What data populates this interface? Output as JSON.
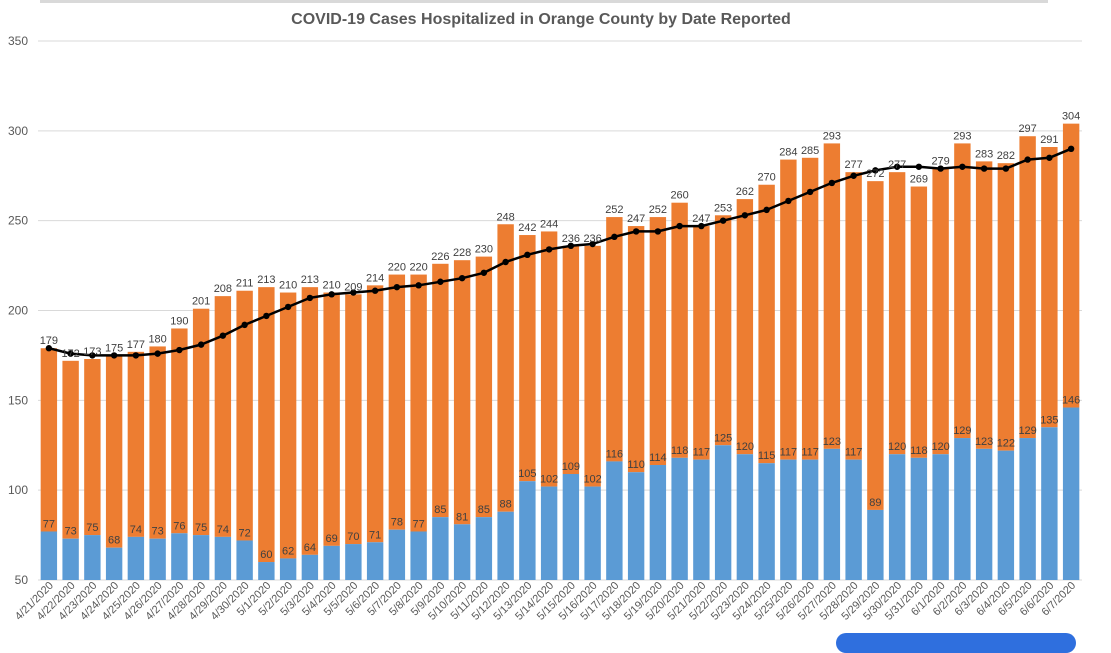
{
  "chart_data": {
    "type": "bar",
    "stacked": true,
    "title": "COVID-19 Cases Hospitalized in Orange County by Date Reported",
    "xlabel": "",
    "ylabel": "",
    "ylim": [
      50,
      350
    ],
    "yticks": [
      50,
      100,
      150,
      200,
      250,
      300,
      350
    ],
    "grid": "horizontal",
    "legend": "none",
    "categories": [
      "4/21/2020",
      "4/22/2020",
      "4/23/2020",
      "4/24/2020",
      "4/25/2020",
      "4/26/2020",
      "4/27/2020",
      "4/28/2020",
      "4/29/2020",
      "4/30/2020",
      "5/1/2020",
      "5/2/2020",
      "5/3/2020",
      "5/4/2020",
      "5/5/2020",
      "5/6/2020",
      "5/7/2020",
      "5/8/2020",
      "5/9/2020",
      "5/10/2020",
      "5/11/2020",
      "5/12/2020",
      "5/13/2020",
      "5/14/2020",
      "5/15/2020",
      "5/16/2020",
      "5/17/2020",
      "5/18/2020",
      "5/19/2020",
      "5/20/2020",
      "5/21/2020",
      "5/22/2020",
      "5/23/2020",
      "5/24/2020",
      "5/25/2020",
      "5/26/2020",
      "5/27/2020",
      "5/28/2020",
      "5/29/2020",
      "5/30/2020",
      "5/31/2020",
      "6/1/2020",
      "6/2/2020",
      "6/3/2020",
      "6/4/2020",
      "6/5/2020",
      "6/6/2020",
      "6/7/2020"
    ],
    "icu": [
      77,
      73,
      75,
      68,
      74,
      73,
      76,
      75,
      74,
      72,
      60,
      62,
      64,
      69,
      70,
      71,
      78,
      77,
      85,
      81,
      85,
      88,
      105,
      102,
      109,
      102,
      116,
      110,
      114,
      118,
      117,
      125,
      120,
      115,
      117,
      117,
      123,
      117,
      89,
      120,
      118,
      120,
      129,
      123,
      122,
      129,
      135,
      146
    ],
    "total": [
      179,
      172,
      173,
      175,
      177,
      180,
      190,
      201,
      208,
      211,
      213,
      210,
      213,
      210,
      209,
      214,
      220,
      220,
      226,
      228,
      230,
      248,
      242,
      244,
      236,
      236,
      252,
      247,
      252,
      260,
      247,
      253,
      262,
      270,
      284,
      285,
      293,
      277,
      272,
      277,
      269,
      279,
      293,
      283,
      282,
      297,
      291,
      304
    ],
    "average": [
      179,
      176,
      175,
      175,
      175,
      176,
      178,
      181,
      186,
      192,
      197,
      202,
      207,
      209,
      210,
      211,
      213,
      214,
      216,
      218,
      221,
      227,
      231,
      234,
      236,
      237,
      241,
      244,
      244,
      247,
      247,
      250,
      253,
      256,
      261,
      266,
      271,
      275,
      278,
      280,
      280,
      279,
      280,
      279,
      279,
      284,
      285,
      290
    ],
    "colors": {
      "icu": "#5b9bd5",
      "total": "#ed7d31",
      "average": "#000000",
      "grid": "#d9d9d9",
      "axis_text": "#595959",
      "label_text": "#404040"
    }
  }
}
